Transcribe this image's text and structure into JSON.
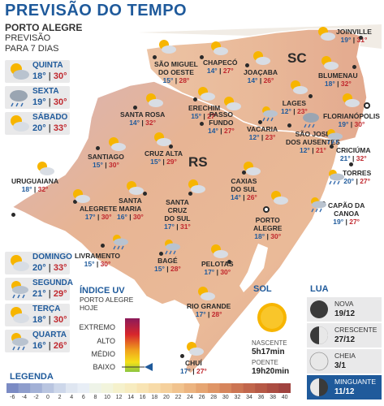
{
  "title": "PREVISÃO DO TEMPO",
  "poa_header": {
    "city": "PORTO ALEGRE",
    "line2": "PREVISÃO",
    "line3": "PARA 7 DIAS"
  },
  "forecast": [
    {
      "day": "QUINTA",
      "min": "18°",
      "max": "30°",
      "icon": "sun-cloud-icon"
    },
    {
      "day": "SEXTA",
      "min": "19°",
      "max": "30°",
      "icon": "cloud-rain-icon"
    },
    {
      "day": "SÁBADO",
      "min": "20°",
      "max": "33°",
      "icon": "sun-cloud-icon"
    },
    {
      "day": "DOMINGO",
      "min": "20°",
      "max": "33°",
      "icon": "sun-cloud-icon"
    },
    {
      "day": "SEGUNDA",
      "min": "21°",
      "max": "29°",
      "icon": "sun-cloud-rain-icon"
    },
    {
      "day": "TERÇA",
      "min": "18°",
      "max": "30°",
      "icon": "sun-cloud-icon"
    },
    {
      "day": "QUARTA",
      "min": "16°",
      "max": "26°",
      "icon": "sun-cloud-rain-icon"
    }
  ],
  "states": {
    "rs": "RS",
    "sc": "SC"
  },
  "cities": [
    {
      "name": "SÃO MIGUEL",
      "name2": "DO OESTE",
      "min": "15°",
      "max": "28°"
    },
    {
      "name": "CHAPECÓ",
      "min": "14°",
      "max": "27°"
    },
    {
      "name": "JOAÇABA",
      "min": "14°",
      "max": "26°"
    },
    {
      "name": "JOINVILLE",
      "min": "19°",
      "max": "31°"
    },
    {
      "name": "BLUMENAU",
      "min": "18°",
      "max": "32°"
    },
    {
      "name": "LAGES",
      "min": "12°",
      "max": "23°"
    },
    {
      "name": "FLORIANÓPOLIS",
      "min": "19°",
      "max": "30°"
    },
    {
      "name": "SANTA ROSA",
      "min": "14°",
      "max": "32°"
    },
    {
      "name": "ERECHIM",
      "min": "15°",
      "max": "27°"
    },
    {
      "name": "VACARIA",
      "min": "12°",
      "max": "23°"
    },
    {
      "name": "PASSO",
      "name2": "FUNDO",
      "min": "14°",
      "max": "27°"
    },
    {
      "name": "SÃO JOSÉ",
      "name2": "DOS AUSENTES",
      "min": "12°",
      "max": "21°"
    },
    {
      "name": "CRICIÚMA",
      "min": "21°",
      "max": "32°"
    },
    {
      "name": "SANTIAGO",
      "min": "15°",
      "max": "30°"
    },
    {
      "name": "CRUZ ALTA",
      "min": "15°",
      "max": "29°"
    },
    {
      "name": "TORRES",
      "min": "20°",
      "max": "27°"
    },
    {
      "name": "URUGUAIANA",
      "min": "18°",
      "max": "32°"
    },
    {
      "name": "CAXIAS",
      "name2": "DO SUL",
      "min": "14°",
      "max": "26°"
    },
    {
      "name": "CAPÃO DA",
      "name2": "CANOA",
      "min": "19°",
      "max": "27°"
    },
    {
      "name": "ALEGRETE",
      "min": "17°",
      "max": "30°"
    },
    {
      "name": "SANTA",
      "name2": "MARIA",
      "min": "16°",
      "max": "30°"
    },
    {
      "name": "SANTA",
      "name2": "CRUZ",
      "name3": "DO SUL",
      "min": "17°",
      "max": "31°"
    },
    {
      "name": "PORTO",
      "name2": "ALEGRE",
      "min": "18°",
      "max": "30°"
    },
    {
      "name": "LIVRAMENTO",
      "min": "15°",
      "max": "30°"
    },
    {
      "name": "BAGÉ",
      "min": "15°",
      "max": "28°"
    },
    {
      "name": "PELOTAS",
      "min": "17°",
      "max": "30°"
    },
    {
      "name": "RIO GRANDE",
      "min": "17°",
      "max": "28°"
    },
    {
      "name": "CHUÍ",
      "min": "17°",
      "max": "27°"
    }
  ],
  "uv": {
    "title": "ÍNDICE UV",
    "subtitle1": "PORTO ALEGRE",
    "subtitle2": "HOJE",
    "levels": [
      "EXTREMO",
      "ALTO",
      "MÉDIO",
      "BAIXO"
    ],
    "current_level": "BAIXO",
    "colors": [
      "#8b1a5a",
      "#d7262c",
      "#f0a21c",
      "#f4e01a",
      "#8cc63f"
    ]
  },
  "sun": {
    "title": "SOL",
    "sunrise_label": "NASCENTE",
    "sunrise": "5h17min",
    "sunset_label": "POENTE",
    "sunset": "19h20min"
  },
  "moon": {
    "title": "LUA",
    "phases": [
      {
        "name": "NOVA",
        "date": "19/12",
        "icon": "new-moon-icon"
      },
      {
        "name": "CRESCENTE",
        "date": "27/12",
        "icon": "first-quarter-moon-icon"
      },
      {
        "name": "CHEIA",
        "date": "3/1",
        "icon": "full-moon-icon"
      },
      {
        "name": "MINGUANTE",
        "date": "11/12",
        "icon": "last-quarter-moon-icon",
        "highlight": true
      }
    ]
  },
  "legend": {
    "title": "LEGENDA",
    "labels": [
      "-6",
      "-4",
      "-2",
      "0",
      "2",
      "4",
      "6",
      "8",
      "10",
      "12",
      "14",
      "16",
      "18",
      "20",
      "22",
      "24",
      "26",
      "28",
      "30",
      "32",
      "34",
      "36",
      "38",
      "40"
    ],
    "colors": [
      "#7b8bc4",
      "#8e9dcc",
      "#a3b1d6",
      "#b9c5e0",
      "#cdd7ea",
      "#dfe6f1",
      "#e8eef6",
      "#eef3e8",
      "#f2f4dc",
      "#f5f1cc",
      "#f7ecc0",
      "#f8e4b4",
      "#f7dba9",
      "#f5d09c",
      "#f1c38e",
      "#ecb480",
      "#e6a572",
      "#df9566",
      "#d6855c",
      "#cc7553",
      "#c1664c",
      "#b65946",
      "#ab4d42",
      "#a0433f"
    ]
  },
  "colors": {
    "title": "#1f5a9b",
    "min": "#1f5a9b",
    "max": "#c0272d",
    "map_warm": "#e9b18c",
    "map_cool": "#c9b6c8"
  }
}
